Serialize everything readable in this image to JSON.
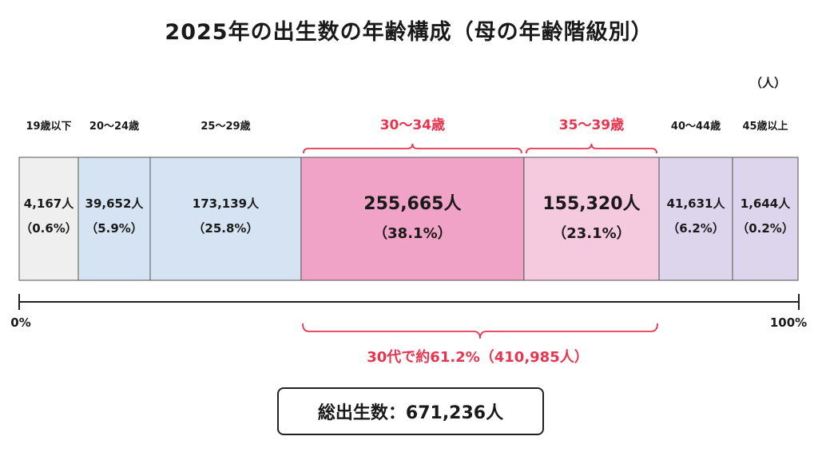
{
  "title": "2025年の出生数の年齢構成（母の年齢階級別）",
  "unit_label": "（人）",
  "axis": {
    "start_label": "0%",
    "end_label": "100%"
  },
  "highlight": {
    "label": "30代で約61.2%（410,985人）",
    "color": "#e8354f"
  },
  "total": {
    "label": "総出生数：671,236人"
  },
  "chart_data": {
    "type": "bar",
    "orientation": "horizontal-100%-stacked",
    "unit": "人",
    "categories": [
      "19歳以下",
      "20～24歳",
      "25～29歳",
      "30～34歳",
      "35～39歳",
      "40～44歳",
      "45歳以上"
    ],
    "values": [
      4167,
      39652,
      173139,
      255665,
      155320,
      41631,
      1644
    ],
    "value_labels": [
      "4,167人",
      "39,652人",
      "173,139人",
      "255,665人",
      "155,320人",
      "41,631人",
      "1,644人"
    ],
    "percents": [
      0.6,
      5.9,
      25.8,
      38.1,
      23.1,
      6.2,
      0.2
    ],
    "percent_labels": [
      "（0.6%）",
      "（5.9%）",
      "（25.8%）",
      "（38.1%）",
      "（23.1%）",
      "（6.2%）",
      "（0.2%）"
    ],
    "colors": [
      "#efefef",
      "#d6e3f3",
      "#d6e3f3",
      "#f0a3c7",
      "#f5c9de",
      "#dcd5ec",
      "#dcd5ec"
    ],
    "highlighted": [
      false,
      false,
      false,
      true,
      true,
      false,
      false
    ],
    "xlim": [
      0,
      100
    ],
    "total": 671236
  }
}
